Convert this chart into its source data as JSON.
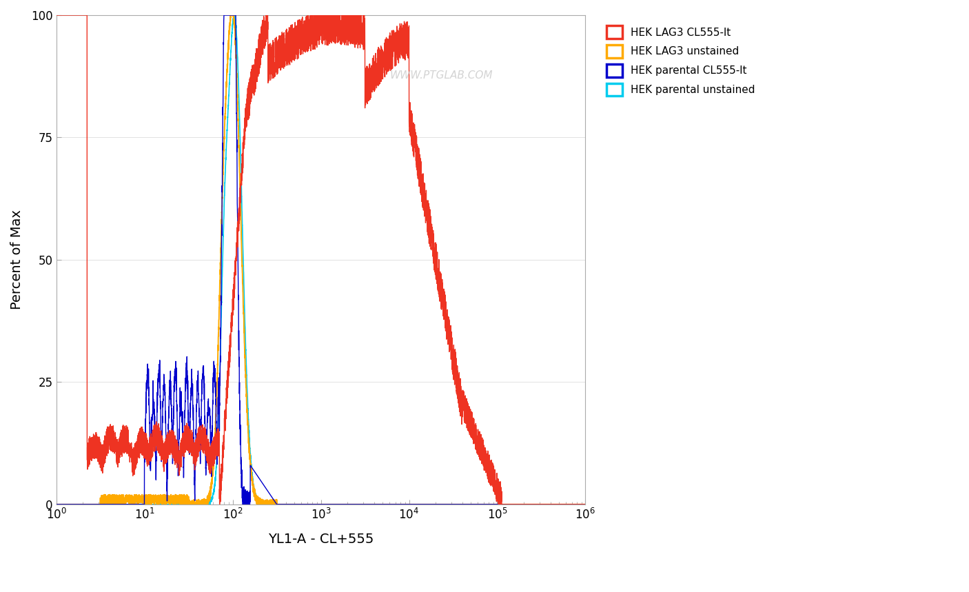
{
  "title": "",
  "xlabel": "YL1-A - CL+555",
  "ylabel": "Percent of Max",
  "ylim": [
    0,
    100
  ],
  "yticks": [
    0,
    25,
    50,
    75,
    100
  ],
  "watermark": "WWW.PTGLAB.COM",
  "legend_entries": [
    {
      "label": "HEK LAG3 CL555-lt",
      "color": "#EE3322"
    },
    {
      "label": "HEK LAG3 unstained",
      "color": "#FFAA00"
    },
    {
      "label": "HEK parental CL555-lt",
      "color": "#0000CC"
    },
    {
      "label": "HEK parental unstained",
      "color": "#00CCEE"
    }
  ],
  "background_color": "#FFFFFF"
}
